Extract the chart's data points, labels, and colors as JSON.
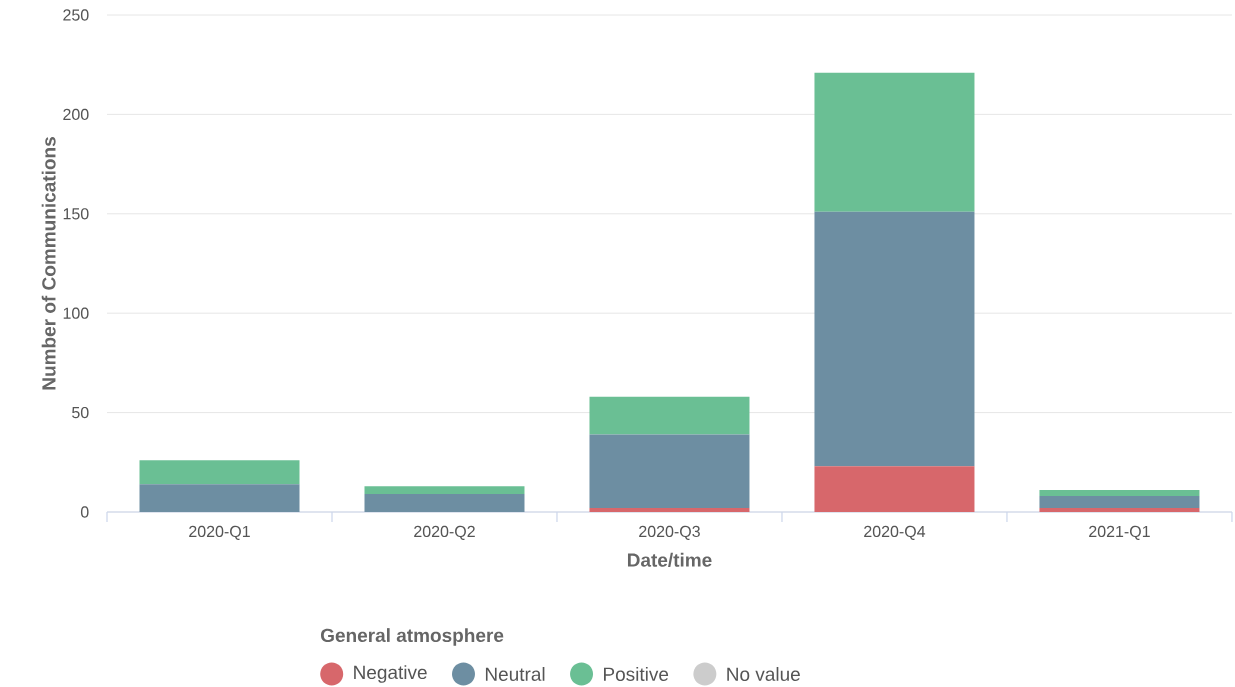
{
  "chart_data": {
    "type": "bar",
    "stacked": true,
    "xlabel": "Date/time",
    "ylabel": "Number of Communications",
    "legend_title": "General atmosphere",
    "categories": [
      "2020-Q1",
      "2020-Q2",
      "2020-Q3",
      "2020-Q4",
      "2021-Q1"
    ],
    "series": [
      {
        "name": "Negative",
        "color": "#d7676b",
        "values": [
          0,
          0,
          2,
          23,
          2
        ]
      },
      {
        "name": "Neutral",
        "color": "#6d8ea2",
        "values": [
          14,
          9,
          37,
          128,
          6
        ]
      },
      {
        "name": "Positive",
        "color": "#6abf94",
        "values": [
          12,
          4,
          19,
          70,
          3
        ]
      },
      {
        "name": "No value",
        "color": "#cccccc",
        "values": [
          null,
          null,
          null,
          null,
          null
        ]
      }
    ],
    "ylim": [
      0,
      250
    ],
    "yticks": [
      0,
      50,
      100,
      150,
      200,
      250
    ],
    "grid": "y",
    "legend": "bottom"
  }
}
